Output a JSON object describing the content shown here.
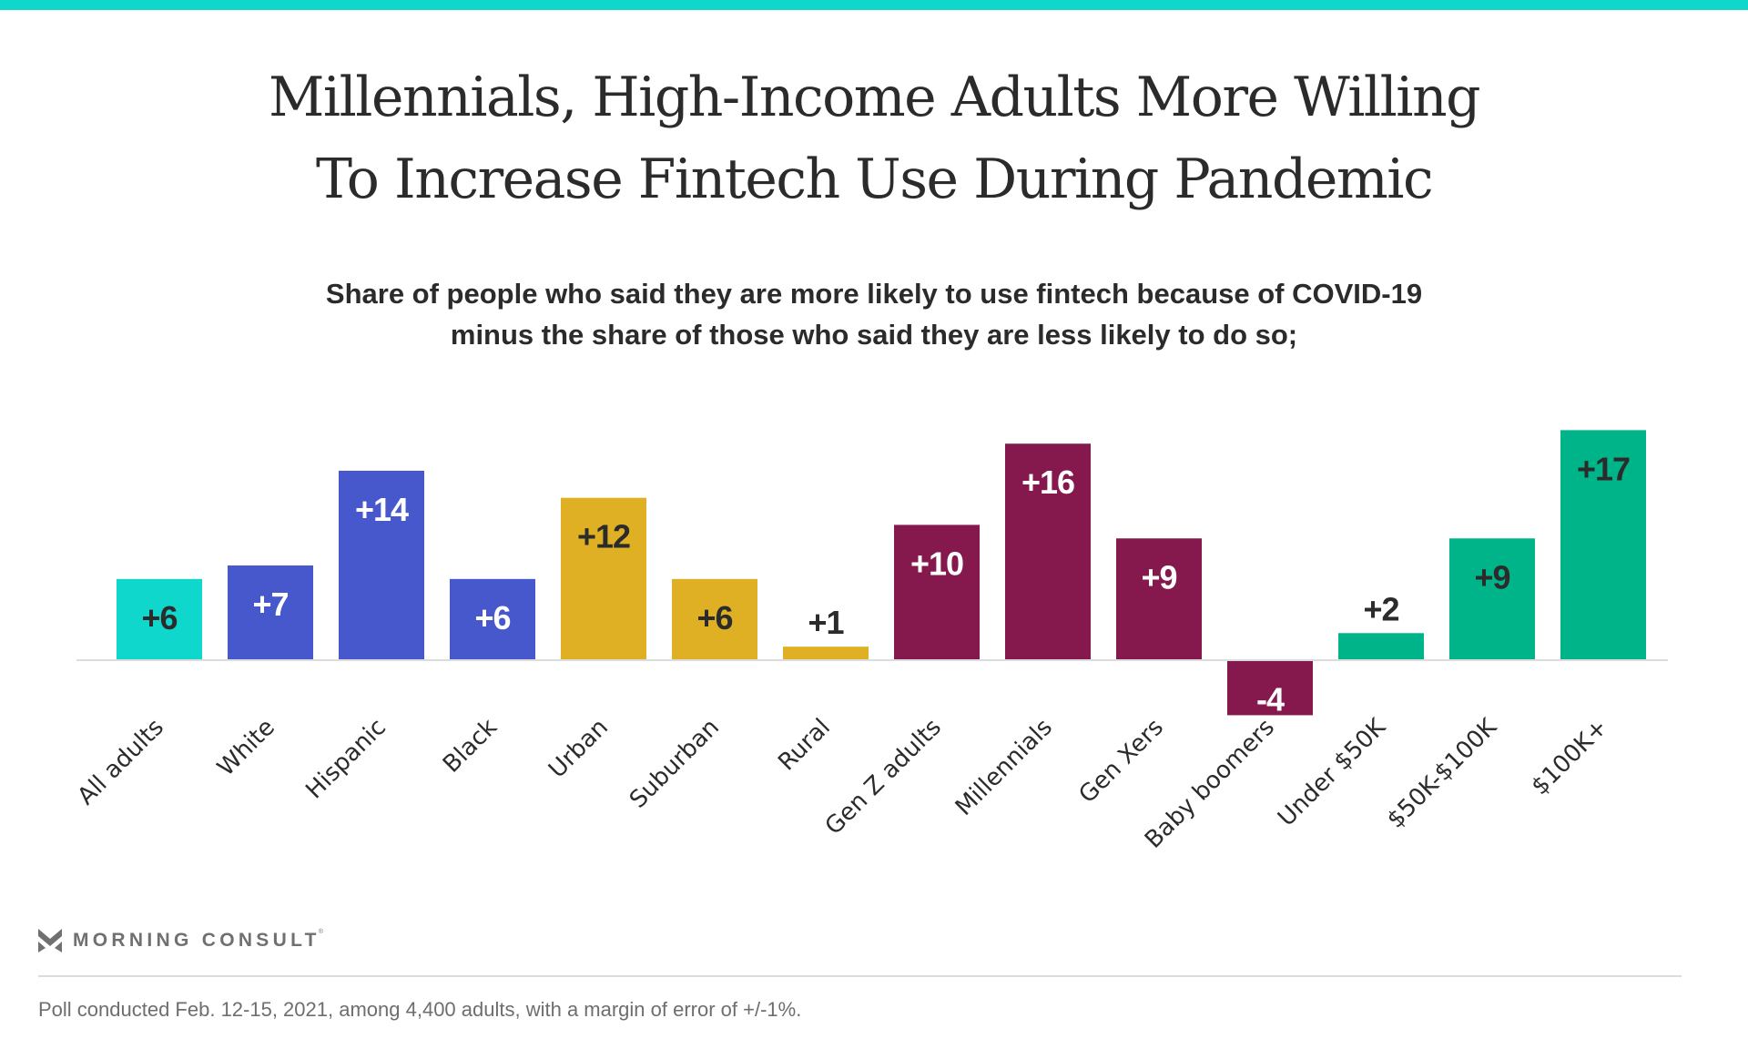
{
  "header": {
    "title_lines": [
      "Millennials, High-Income Adults More Willing",
      "To Increase Fintech Use During Pandemic"
    ],
    "subtitle_lines": [
      "Share of people who said they are more likely to use fintech because of COVID-19",
      "minus the share of those who said they are less likely to do so;"
    ]
  },
  "colors": {
    "accent_bar": "#0fd7cc",
    "all_adults": "#0fd7cc",
    "race": "#4658cc",
    "community": "#e0b024",
    "generation": "#85184d",
    "income": "#00b48a",
    "dark_text": "#2b2b2b",
    "light_text": "#ffffff",
    "axis": "#dcdcdc"
  },
  "chart_data": {
    "type": "bar",
    "title": "Millennials, High-Income Adults More Willing To Increase Fintech Use During Pandemic",
    "subtitle": "Share of people who said they are more likely to use fintech because of COVID-19 minus the share of those who said they are less likely to do so;",
    "xlabel": "",
    "ylabel": "",
    "ylim": [
      -4,
      17
    ],
    "grid": false,
    "legend": "none",
    "categories": [
      "All adults",
      "White",
      "Hispanic",
      "Black",
      "Urban",
      "Suburban",
      "Rural",
      "Gen Z adults",
      "Millennials",
      "Gen Xers",
      "Baby boomers",
      "Under $50K",
      "$50K-$100K",
      "$100K+"
    ],
    "values": [
      6,
      7,
      14,
      6,
      12,
      6,
      1,
      10,
      16,
      9,
      -4,
      2,
      9,
      17
    ],
    "value_labels": [
      "+6",
      "+7",
      "+14",
      "+6",
      "+12",
      "+6",
      "+1",
      "+10",
      "+16",
      "+9",
      "-4",
      "+2",
      "+9",
      "+17"
    ],
    "groups": [
      "all_adults",
      "race",
      "race",
      "race",
      "community",
      "community",
      "community",
      "generation",
      "generation",
      "generation",
      "generation",
      "income",
      "income",
      "income"
    ]
  },
  "brand": {
    "logo_icon": "morning-consult-chevron-icon",
    "name": "MORNING CONSULT",
    "registered": "®"
  },
  "footnote": "Poll conducted Feb. 12-15, 2021, among 4,400 adults, with a margin of error of +/-1%."
}
